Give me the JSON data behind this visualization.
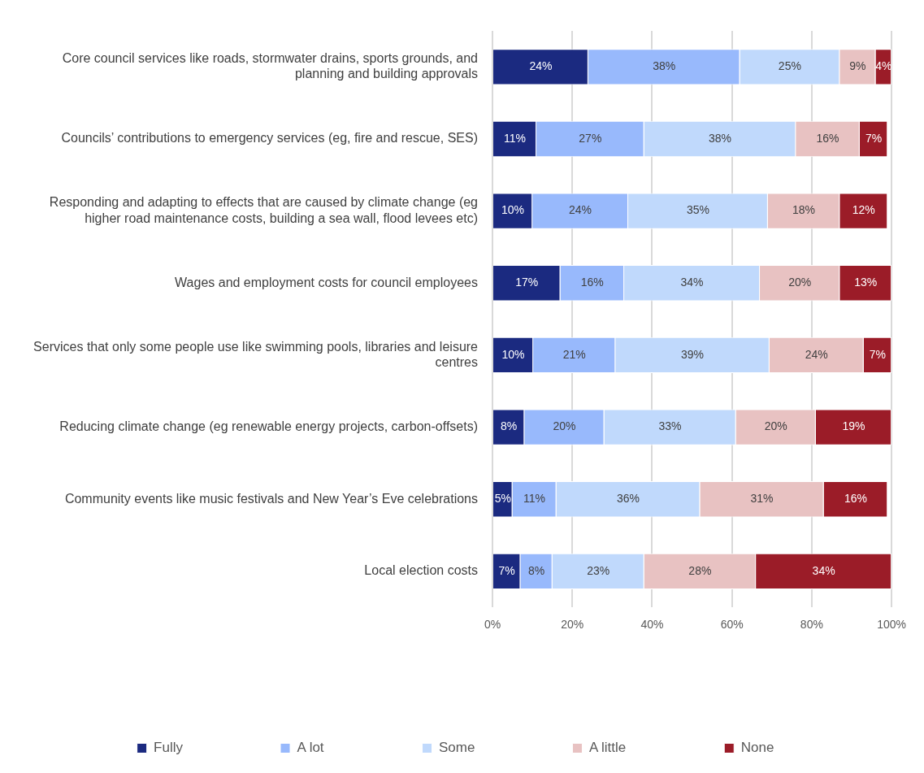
{
  "chart_data": {
    "type": "bar",
    "orientation": "horizontal",
    "stacked": true,
    "categories": [
      "Core council services like roads, stormwater drains, sports grounds, and planning and building approvals",
      "Councils’ contributions to emergency services (eg, fire and rescue, SES)",
      "Responding and adapting to effects that are caused by climate change (eg higher road maintenance costs, building a sea wall, flood levees etc)",
      "Wages and employment costs for council employees",
      "Services that only some people use like swimming pools, libraries and leisure centres",
      "Reducing climate change (eg renewable energy projects, carbon-offsets)",
      "Community events like music festivals and New Year’s Eve celebrations",
      "Local election costs"
    ],
    "series": [
      {
        "name": "Fully",
        "color": "#1b2a80",
        "values": [
          24,
          11,
          10,
          17,
          10.2,
          8,
          5,
          7
        ],
        "value_labels": [
          "24%",
          "11%",
          "10%",
          "17%",
          "10%",
          "8%",
          "5%",
          "7%"
        ]
      },
      {
        "name": "A lot",
        "color": "#98b9fc",
        "values": [
          38,
          27,
          24,
          16,
          20.6,
          20,
          11,
          8
        ],
        "value_labels": [
          "38%",
          "27%",
          "24%",
          "16%",
          "21%",
          "20%",
          "11%",
          "8%"
        ]
      },
      {
        "name": "Some",
        "color": "#c0d9fc",
        "values": [
          25,
          38,
          35,
          34,
          38.6,
          33,
          36,
          23
        ],
        "value_labels": [
          "25%",
          "38%",
          "35%",
          "34%",
          "39%",
          "33%",
          "36%",
          "23%"
        ]
      },
      {
        "name": "A little",
        "color": "#e8c2c2",
        "values": [
          9,
          16,
          18,
          20,
          23.6,
          20,
          31,
          28
        ],
        "value_labels": [
          "9%",
          "16%",
          "18%",
          "20%",
          "24%",
          "20%",
          "31%",
          "28%"
        ]
      },
      {
        "name": "None",
        "color": "#9b1c28",
        "values": [
          4,
          7,
          12,
          13,
          7,
          19,
          16,
          34
        ],
        "value_labels": [
          "4%",
          "7%",
          "12%",
          "13%",
          "7%",
          "19%",
          "16%",
          "34%"
        ]
      }
    ],
    "xlim": [
      0,
      100
    ],
    "xticks": [
      {
        "value": 0,
        "label": "0%"
      },
      {
        "value": 20,
        "label": "20%"
      },
      {
        "value": 40,
        "label": "40%"
      },
      {
        "value": 60,
        "label": "60%"
      },
      {
        "value": 80,
        "label": "80%"
      },
      {
        "value": 100,
        "label": "100%"
      }
    ],
    "grid": "x",
    "legend": "bottom"
  }
}
